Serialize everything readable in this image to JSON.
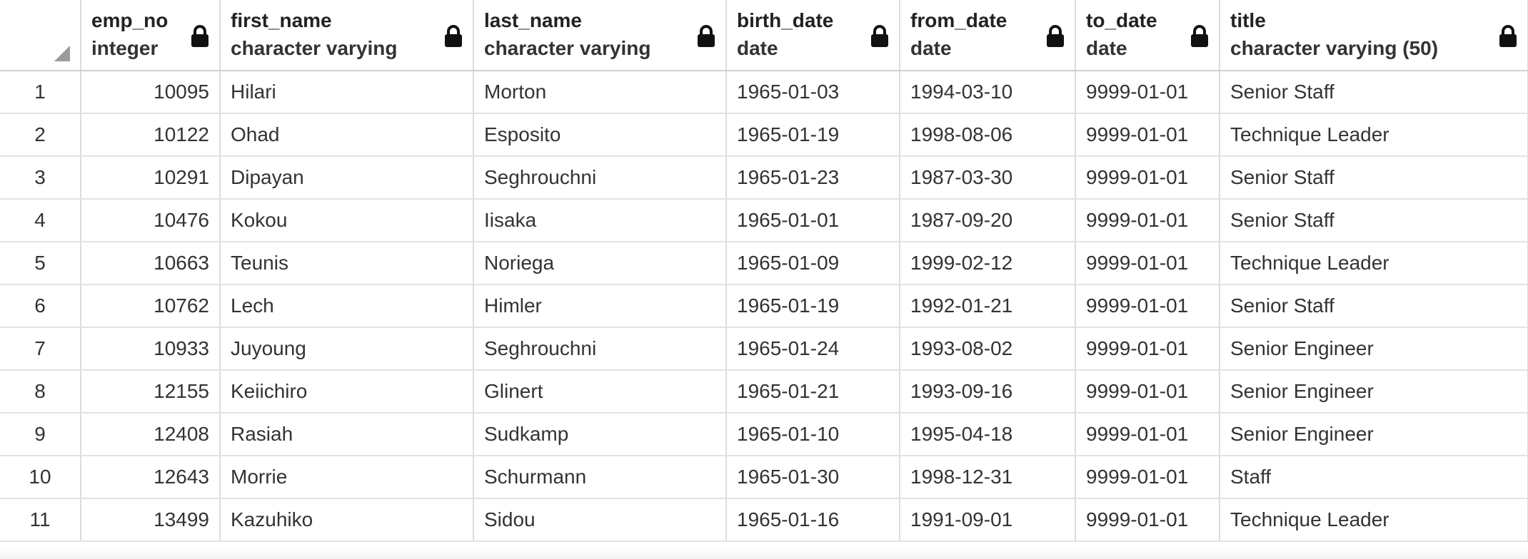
{
  "columns": [
    {
      "name": "emp_no",
      "type": "integer"
    },
    {
      "name": "first_name",
      "type": "character varying"
    },
    {
      "name": "last_name",
      "type": "character varying"
    },
    {
      "name": "birth_date",
      "type": "date"
    },
    {
      "name": "from_date",
      "type": "date"
    },
    {
      "name": "to_date",
      "type": "date"
    },
    {
      "name": "title",
      "type": "character varying (50)"
    }
  ],
  "icons": {
    "column_lock": "lock-icon",
    "select_all": "select-all-corner-icon"
  },
  "rows": [
    {
      "num": "1",
      "cells": [
        "10095",
        "Hilari",
        "Morton",
        "1965-01-03",
        "1994-03-10",
        "9999-01-01",
        "Senior Staff"
      ]
    },
    {
      "num": "2",
      "cells": [
        "10122",
        "Ohad",
        "Esposito",
        "1965-01-19",
        "1998-08-06",
        "9999-01-01",
        "Technique Leader"
      ]
    },
    {
      "num": "3",
      "cells": [
        "10291",
        "Dipayan",
        "Seghrouchni",
        "1965-01-23",
        "1987-03-30",
        "9999-01-01",
        "Senior Staff"
      ]
    },
    {
      "num": "4",
      "cells": [
        "10476",
        "Kokou",
        "Iisaka",
        "1965-01-01",
        "1987-09-20",
        "9999-01-01",
        "Senior Staff"
      ]
    },
    {
      "num": "5",
      "cells": [
        "10663",
        "Teunis",
        "Noriega",
        "1965-01-09",
        "1999-02-12",
        "9999-01-01",
        "Technique Leader"
      ]
    },
    {
      "num": "6",
      "cells": [
        "10762",
        "Lech",
        "Himler",
        "1965-01-19",
        "1992-01-21",
        "9999-01-01",
        "Senior Staff"
      ]
    },
    {
      "num": "7",
      "cells": [
        "10933",
        "Juyoung",
        "Seghrouchni",
        "1965-01-24",
        "1993-08-02",
        "9999-01-01",
        "Senior Engineer"
      ]
    },
    {
      "num": "8",
      "cells": [
        "12155",
        "Keiichiro",
        "Glinert",
        "1965-01-21",
        "1993-09-16",
        "9999-01-01",
        "Senior Engineer"
      ]
    },
    {
      "num": "9",
      "cells": [
        "12408",
        "Rasiah",
        "Sudkamp",
        "1965-01-10",
        "1995-04-18",
        "9999-01-01",
        "Senior Engineer"
      ]
    },
    {
      "num": "10",
      "cells": [
        "12643",
        "Morrie",
        "Schurmann",
        "1965-01-30",
        "1998-12-31",
        "9999-01-01",
        "Staff"
      ]
    },
    {
      "num": "11",
      "cells": [
        "13499",
        "Kazuhiko",
        "Sidou",
        "1965-01-16",
        "1991-09-01",
        "9999-01-01",
        "Technique Leader"
      ]
    }
  ]
}
